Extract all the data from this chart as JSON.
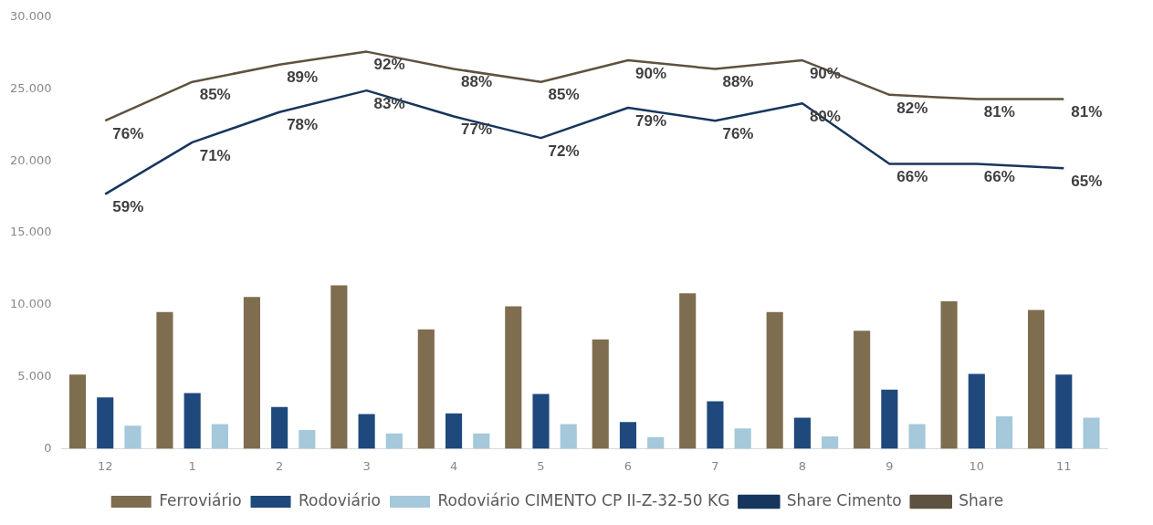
{
  "chart_data": {
    "type": "bar",
    "categories": [
      "12",
      "1",
      "2",
      "3",
      "4",
      "5",
      "6",
      "7",
      "8",
      "9",
      "10",
      "11"
    ],
    "series": [
      {
        "name": "Ferroviário",
        "color": "#7f6d50",
        "values": [
          5150,
          9500,
          10550,
          11350,
          8300,
          9900,
          7600,
          10800,
          9500,
          8200,
          10250,
          9650
        ]
      },
      {
        "name": "Rodoviário",
        "color": "#1f497d",
        "values": [
          3560,
          3870,
          2900,
          2400,
          2450,
          3800,
          1850,
          3300,
          2150,
          4100,
          5200,
          5150
        ]
      },
      {
        "name": "Rodoviário CIMENTO CP II-Z-32-50 KG",
        "color": "#a5c8da",
        "values": [
          1600,
          1700,
          1300,
          1050,
          1050,
          1700,
          800,
          1400,
          850,
          1700,
          2250,
          2150
        ]
      },
      {
        "name": "Share Cimento",
        "type": "line",
        "axis": "y2",
        "color": "#17365d",
        "values": [
          59,
          71,
          78,
          83,
          77,
          72,
          79,
          76,
          80,
          66,
          66,
          65
        ],
        "value_labels": [
          "59%",
          "71%",
          "78%",
          "83%",
          "77%",
          "72%",
          "79%",
          "76%",
          "80%",
          "66%",
          "66%",
          "65%"
        ]
      },
      {
        "name": "Share",
        "type": "line",
        "axis": "y2",
        "color": "#5e5240",
        "values": [
          76,
          85,
          89,
          92,
          88,
          85,
          90,
          88,
          90,
          82,
          81,
          81
        ],
        "value_labels": [
          "76%",
          "85%",
          "89%",
          "92%",
          "88%",
          "85%",
          "90%",
          "88%",
          "90%",
          "82%",
          "81%",
          "81%"
        ]
      }
    ],
    "ylim": [
      0,
      30000
    ],
    "yticks": [
      {
        "value": 0,
        "label": "0"
      },
      {
        "value": 5000,
        "label": "5.000"
      },
      {
        "value": 10000,
        "label": "10.000"
      },
      {
        "value": 15000,
        "label": "15.000"
      },
      {
        "value": 20000,
        "label": "20.000"
      },
      {
        "value": 25000,
        "label": "25.000"
      },
      {
        "value": 30000,
        "label": "30.000"
      }
    ],
    "tick_labels": "xy",
    "grid": false,
    "legend": "bottom",
    "marker": "none"
  }
}
